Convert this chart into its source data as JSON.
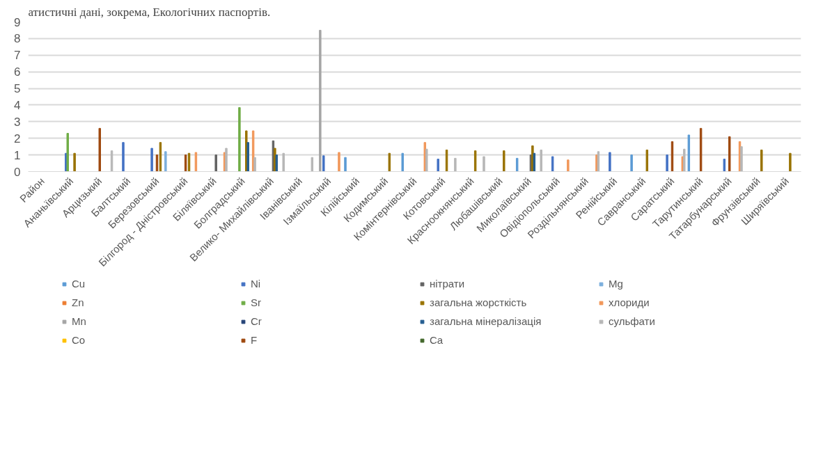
{
  "chart_data": {
    "type": "bar",
    "categories": [
      "Район",
      "Ананьївський",
      "Арцизький",
      "Балтський",
      "Березовський",
      "Білгород - Дністровський",
      "Біляївський",
      "Болградський",
      "Велико- Михайлівський",
      "Іванівський",
      "Ізмаїльський",
      "Кілійський",
      "Кодимський",
      "Комінтернівський",
      "Котовський",
      "Красноокнянський",
      "Любашівський",
      "Миколаївський",
      "Овідіопольський",
      "Роздільнянський",
      "Ренійський",
      "Савранський",
      "Саратський",
      "Тарутинський",
      "Татарбунарський",
      "Фрунзівський",
      "Ширяївський"
    ],
    "series": [
      {
        "name": "Cu",
        "color": "#5b9bd5",
        "values": [
          null,
          null,
          null,
          null,
          null,
          null,
          null,
          null,
          null,
          null,
          null,
          0.85,
          null,
          1.1,
          null,
          null,
          null,
          0.8,
          null,
          null,
          null,
          1.0,
          null,
          2.2,
          null,
          null,
          null
        ]
      },
      {
        "name": "Zn",
        "color": "#ed7d31",
        "values": [
          null,
          null,
          null,
          null,
          null,
          null,
          null,
          null,
          null,
          null,
          null,
          null,
          null,
          null,
          null,
          null,
          null,
          null,
          null,
          null,
          null,
          null,
          null,
          null,
          null,
          null,
          null
        ]
      },
      {
        "name": "Mn",
        "color": "#a5a5a5",
        "values": [
          null,
          null,
          null,
          null,
          null,
          null,
          null,
          null,
          null,
          null,
          8.5,
          null,
          null,
          null,
          null,
          null,
          null,
          null,
          null,
          null,
          null,
          null,
          null,
          null,
          null,
          null,
          null
        ]
      },
      {
        "name": "Co",
        "color": "#ffc000",
        "values": [
          null,
          null,
          null,
          null,
          null,
          null,
          null,
          null,
          null,
          null,
          null,
          null,
          null,
          null,
          null,
          null,
          null,
          null,
          null,
          null,
          null,
          null,
          null,
          null,
          null,
          null,
          null
        ]
      },
      {
        "name": "Ni",
        "color": "#4472c4",
        "values": [
          null,
          1.1,
          null,
          1.75,
          1.4,
          null,
          null,
          null,
          null,
          null,
          0.95,
          null,
          null,
          null,
          0.75,
          null,
          null,
          null,
          0.9,
          null,
          1.15,
          null,
          1.0,
          null,
          0.75,
          null,
          null
        ]
      },
      {
        "name": "Sr",
        "color": "#70ad47",
        "values": [
          null,
          2.3,
          null,
          null,
          null,
          null,
          null,
          3.85,
          null,
          null,
          null,
          null,
          null,
          null,
          null,
          null,
          null,
          null,
          null,
          null,
          null,
          null,
          null,
          null,
          null,
          null,
          null
        ]
      },
      {
        "name": "Cr",
        "color": "#264478",
        "values": [
          null,
          null,
          null,
          null,
          null,
          null,
          null,
          null,
          null,
          null,
          null,
          null,
          null,
          null,
          null,
          null,
          null,
          null,
          null,
          null,
          null,
          null,
          null,
          null,
          null,
          null,
          null
        ]
      },
      {
        "name": "F",
        "color": "#9e480e",
        "values": [
          null,
          null,
          2.6,
          null,
          1.0,
          1.0,
          null,
          null,
          null,
          null,
          null,
          null,
          null,
          null,
          null,
          null,
          null,
          null,
          null,
          null,
          null,
          null,
          1.8,
          2.6,
          2.1,
          null,
          null
        ]
      },
      {
        "name": "нітрати",
        "color": "#636363",
        "values": [
          null,
          null,
          null,
          null,
          null,
          null,
          1.0,
          null,
          1.85,
          null,
          null,
          null,
          null,
          null,
          null,
          null,
          null,
          1.0,
          null,
          null,
          null,
          null,
          null,
          null,
          null,
          null,
          null
        ]
      },
      {
        "name": "загальна жорсткість",
        "color": "#997300",
        "values": [
          null,
          1.1,
          null,
          null,
          1.75,
          1.1,
          null,
          2.45,
          1.4,
          null,
          null,
          null,
          1.1,
          null,
          1.3,
          1.25,
          1.25,
          1.55,
          null,
          null,
          null,
          1.3,
          null,
          null,
          null,
          1.3,
          1.1
        ]
      },
      {
        "name": "загальна мінералізація",
        "color": "#255e91",
        "values": [
          null,
          null,
          null,
          null,
          null,
          null,
          null,
          1.75,
          1.0,
          null,
          null,
          null,
          null,
          null,
          null,
          null,
          null,
          1.1,
          null,
          null,
          null,
          null,
          null,
          null,
          null,
          null,
          null
        ]
      },
      {
        "name": "Ca",
        "color": "#43682b",
        "values": [
          null,
          null,
          null,
          null,
          null,
          null,
          null,
          null,
          null,
          null,
          null,
          null,
          null,
          null,
          null,
          null,
          null,
          null,
          null,
          null,
          null,
          null,
          null,
          null,
          null,
          null,
          null
        ]
      },
      {
        "name": "Mg",
        "color": "#7cafdd",
        "values": [
          null,
          null,
          null,
          null,
          1.2,
          null,
          null,
          null,
          null,
          null,
          null,
          null,
          null,
          null,
          null,
          null,
          null,
          null,
          null,
          null,
          null,
          null,
          null,
          null,
          null,
          null,
          null
        ]
      },
      {
        "name": "хлориди",
        "color": "#f1975a",
        "values": [
          null,
          null,
          null,
          null,
          null,
          1.15,
          1.15,
          2.45,
          null,
          null,
          1.15,
          null,
          null,
          1.75,
          null,
          null,
          null,
          null,
          0.7,
          1.0,
          null,
          null,
          0.9,
          null,
          1.8,
          null,
          null
        ]
      },
      {
        "name": "сульфати",
        "color": "#b7b7b7",
        "values": [
          null,
          null,
          1.25,
          null,
          null,
          null,
          1.4,
          0.85,
          1.1,
          0.85,
          null,
          null,
          null,
          1.35,
          0.8,
          0.9,
          null,
          1.3,
          null,
          1.2,
          null,
          null,
          1.35,
          null,
          1.5,
          null,
          null
        ]
      }
    ],
    "ylim": [
      0,
      9
    ],
    "yticks": [
      0,
      1,
      2,
      3,
      4,
      5,
      6,
      7,
      8,
      9
    ],
    "grid": "y",
    "legend": "bottom",
    "annotations": [
      "атистичні дані, зокрема, Екологічних паспортів."
    ]
  }
}
